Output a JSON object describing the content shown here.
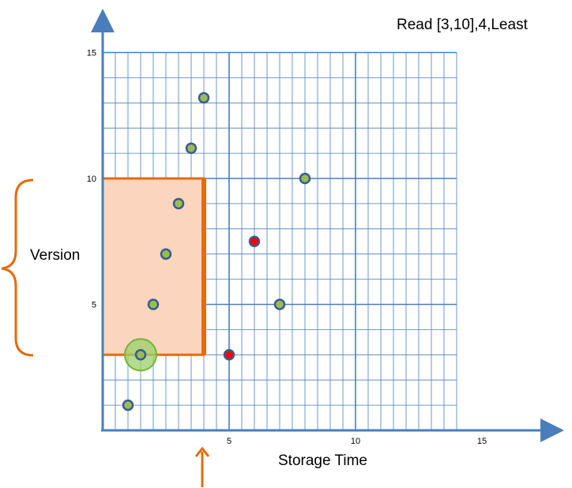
{
  "title": "Read [3,10],4,Least",
  "x_axis_label": "Storage Time",
  "y_axis_label": "Version",
  "colors": {
    "axis": "#4a7ebb",
    "grid": "#4a7ebb",
    "highlight_fill": "#fbd5bd",
    "highlight_stroke": "#e46c0a",
    "point_fill": "#9bbb59",
    "point_stroke": "#385d8a",
    "selected_point": "#ff0000",
    "result_halo": "#9bd06a"
  },
  "chart_data": {
    "type": "scatter",
    "xlim": [
      0,
      14
    ],
    "ylim": [
      0,
      15
    ],
    "x_ticks": [
      5,
      10,
      15
    ],
    "y_ticks": [
      5,
      10,
      15
    ],
    "grid": true,
    "points": [
      {
        "x": 1,
        "y": 1,
        "state": "normal"
      },
      {
        "x": 1.5,
        "y": 3,
        "state": "result"
      },
      {
        "x": 2,
        "y": 5,
        "state": "normal"
      },
      {
        "x": 2.5,
        "y": 7,
        "state": "normal"
      },
      {
        "x": 3,
        "y": 9,
        "state": "normal"
      },
      {
        "x": 3.5,
        "y": 11.2,
        "state": "normal"
      },
      {
        "x": 4,
        "y": 13.2,
        "state": "normal"
      },
      {
        "x": 5,
        "y": 3,
        "state": "marked"
      },
      {
        "x": 6,
        "y": 7.5,
        "state": "marked"
      },
      {
        "x": 7,
        "y": 5,
        "state": "normal"
      },
      {
        "x": 8,
        "y": 10,
        "state": "normal"
      }
    ],
    "query_region": {
      "x_min": 0,
      "x_max": 4,
      "y_min": 3,
      "y_max": 10
    },
    "time_marker_x": 4
  }
}
